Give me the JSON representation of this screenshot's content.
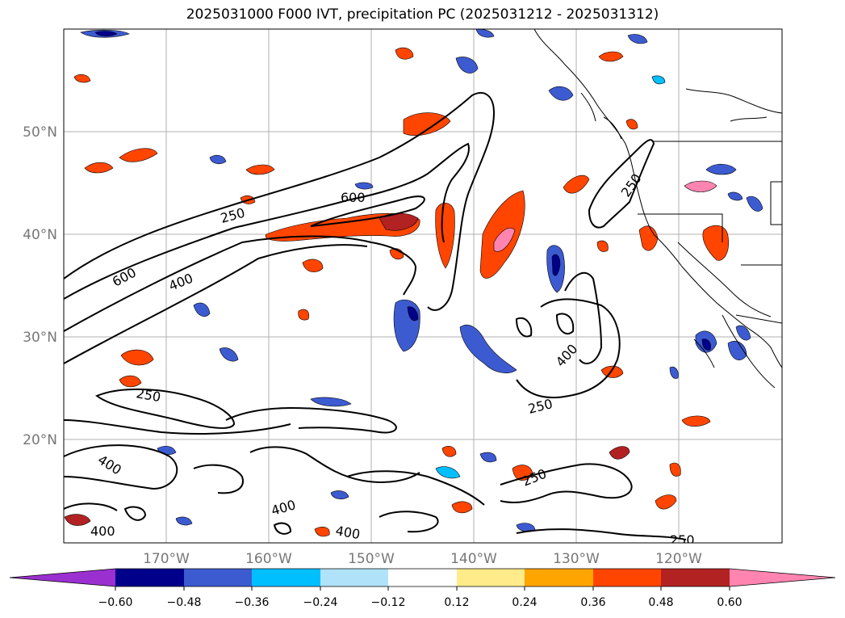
{
  "title": "2025031000 F000 IVT, precipitation PC (2025031212 - 2025031312)",
  "latitude_labels": [
    "50°N",
    "40°N",
    "30°N",
    "20°N"
  ],
  "longitude_labels": [
    "170°W",
    "160°W",
    "150°W",
    "140°W",
    "130°W",
    "120°W"
  ],
  "contour_labels": [
    "600",
    "250",
    "600",
    "400",
    "250",
    "400",
    "400",
    "250",
    "250",
    "250",
    "400",
    "400",
    "250"
  ],
  "colorbar": {
    "tick_labels": [
      "−0.60",
      "−0.48",
      "−0.36",
      "−0.24",
      "−0.12",
      "0.12",
      "0.24",
      "0.36",
      "0.48",
      "0.60"
    ],
    "colors": [
      "#9b30d0",
      "#00008b",
      "#3d5bd1",
      "#00bfff",
      "#b0e2fa",
      "#ffffff",
      "#ffeb8a",
      "#ffa500",
      "#ff4500",
      "#b22222",
      "#ff85b0"
    ]
  }
}
